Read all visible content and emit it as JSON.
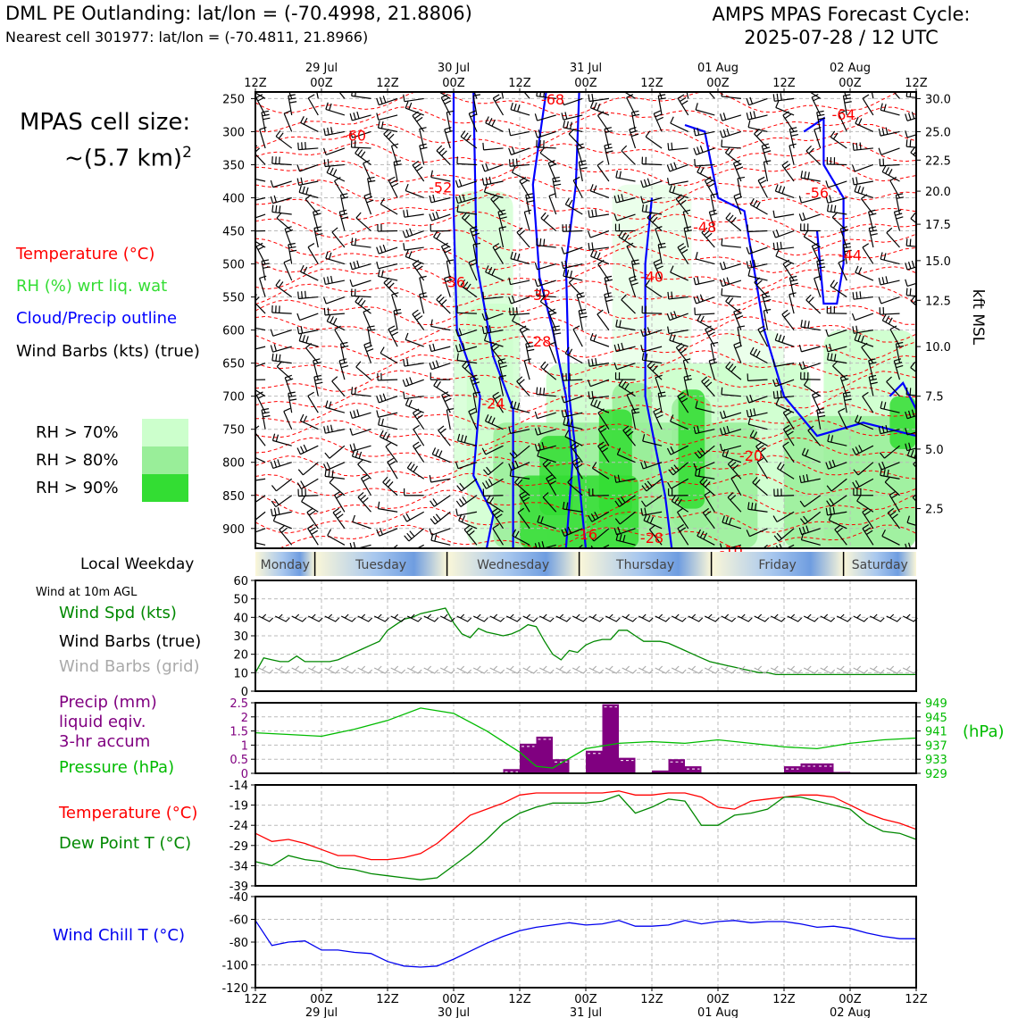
{
  "header": {
    "title_left": "DML PE Outlanding: lat/lon = (-70.4998, 21.8806)",
    "subtitle_left": "Nearest cell 301977: lat/lon = (-70.4811, 21.8966)",
    "title_right_line1": "AMPS MPAS Forecast Cycle:",
    "title_right_line2": "2025-07-28 / 12 UTC"
  },
  "left_panel": {
    "cell_size_line1": "MPAS cell size:",
    "cell_size_line2": "~(5.7 km)",
    "cell_size_exp": "2",
    "legend_temperature": "Temperature (°C)",
    "legend_rh": "RH (%) wrt liq. wat",
    "legend_cloud": "Cloud/Precip outline",
    "legend_wind": "Wind Barbs (kts) (true)",
    "rh_levels": [
      {
        "label": "RH > 70%",
        "color": "#ccffcc"
      },
      {
        "label": "RH > 80%",
        "color": "#99ee99"
      },
      {
        "label": "RH > 90%",
        "color": "#33dd33"
      }
    ]
  },
  "colors": {
    "temperature": "#ff0000",
    "rh_text": "#33dd33",
    "cloud": "#0000ff",
    "wind_speed": "#008800",
    "precip": "#800080",
    "pressure": "#00bb00",
    "dewpoint": "#008800",
    "windchill": "#0000ee",
    "grid_barbs": "#aaaaaa"
  },
  "time_axis": {
    "hours": [
      "12Z",
      "00Z",
      "12Z",
      "00Z",
      "12Z",
      "00Z",
      "12Z",
      "00Z",
      "12Z",
      "00Z",
      "12Z"
    ],
    "dates": [
      "",
      "29 Jul",
      "",
      "30 Jul",
      "",
      "31 Jul",
      "",
      "01 Aug",
      "",
      "02 Aug",
      ""
    ]
  },
  "weekday_strip": {
    "label": "Local Weekday",
    "days": [
      "Monday",
      "Tuesday",
      "Wednesday",
      "Thursday",
      "Friday",
      "Saturday"
    ]
  },
  "chart_data": [
    {
      "type": "heatmap",
      "name": "time-height cross section",
      "yaxis_left_label": "",
      "pressure_ticks": [
        250,
        300,
        350,
        400,
        450,
        500,
        550,
        600,
        650,
        700,
        750,
        800,
        850,
        900
      ],
      "ylim": [
        930,
        240
      ],
      "right_axis_label": "kft MSL",
      "height_ticks": [
        {
          "label": "30.0",
          "p": 250
        },
        {
          "label": "25.0",
          "p": 300
        },
        {
          "label": "22.5",
          "p": 343
        },
        {
          "label": "20.0",
          "p": 390
        },
        {
          "label": "17.5",
          "p": 440
        },
        {
          "label": "15.0",
          "p": 495
        },
        {
          "label": "12.5",
          "p": 555
        },
        {
          "label": "10.0",
          "p": 625
        },
        {
          "label": "7.5",
          "p": 700
        },
        {
          "label": "5.0",
          "p": 780
        },
        {
          "label": "2.5",
          "p": 870
        }
      ],
      "temperature_labels": [
        {
          "t": 4.5,
          "p": 252,
          "text": "-68"
        },
        {
          "t": 1.5,
          "p": 307,
          "text": "-60"
        },
        {
          "t": 2.8,
          "p": 385,
          "text": "-52"
        },
        {
          "t": 3.0,
          "p": 528,
          "text": "-36"
        },
        {
          "t": 3.6,
          "p": 712,
          "text": "-24"
        },
        {
          "t": 6.0,
          "p": 915,
          "text": "-28"
        },
        {
          "t": 4.3,
          "p": 548,
          "text": "-32"
        },
        {
          "t": 4.3,
          "p": 618,
          "text": "-28"
        },
        {
          "t": 6.0,
          "p": 520,
          "text": "-40"
        },
        {
          "t": 6.8,
          "p": 445,
          "text": "-48"
        },
        {
          "t": 5.0,
          "p": 910,
          "text": "-16"
        },
        {
          "t": 7.5,
          "p": 791,
          "text": "-20"
        },
        {
          "t": 8.9,
          "p": 275,
          "text": "-64"
        },
        {
          "t": 8.5,
          "p": 393,
          "text": "-56"
        },
        {
          "t": 9.0,
          "p": 488,
          "text": "-44"
        },
        {
          "t": 9.1,
          "p": 233,
          "text": "-68"
        },
        {
          "t": 7.2,
          "p": 935,
          "text": "-10"
        }
      ]
    },
    {
      "type": "line",
      "name": "Wind at 10m AGL",
      "panel_title": "Wind at 10m AGL",
      "legend": [
        "Wind Spd (kts)",
        "Wind Barbs (true)",
        "Wind Barbs (grid)"
      ],
      "ylim": [
        0,
        60
      ],
      "yticks": [
        0,
        10,
        20,
        30,
        40,
        50,
        60
      ],
      "x": [
        0,
        0.125,
        0.25,
        0.375,
        0.5,
        0.625,
        0.75,
        0.875,
        1,
        1.125,
        1.25,
        1.375,
        1.5,
        1.625,
        1.75,
        1.875,
        2,
        2.125,
        2.25,
        2.375,
        2.5,
        2.625,
        2.75,
        2.875,
        3,
        3.125,
        3.25,
        3.375,
        3.5,
        3.625,
        3.75,
        3.875,
        4,
        4.125,
        4.25,
        4.375,
        4.5,
        4.625,
        4.75,
        4.875,
        5,
        5.125,
        5.25,
        5.375,
        5.5,
        5.625,
        5.75,
        5.875,
        6,
        6.125,
        6.25,
        6.375,
        6.5,
        6.625,
        6.75,
        6.875,
        7,
        7.125,
        7.25,
        7.375,
        7.5,
        7.625,
        7.75,
        7.875,
        8,
        8.125,
        8.25,
        8.375,
        8.5,
        8.625,
        8.75,
        8.875,
        9,
        9.125,
        9.25,
        9.375,
        9.5,
        9.625,
        9.75,
        9.875,
        10
      ],
      "wind_speed": [
        10,
        18,
        17,
        16,
        16,
        19,
        16,
        16,
        16,
        16,
        17,
        19,
        21,
        23,
        25,
        27,
        33,
        36,
        39,
        40,
        42,
        43,
        44,
        45,
        37,
        31,
        29,
        34,
        32,
        31,
        30,
        31,
        33,
        36,
        35,
        27,
        20,
        17,
        22,
        21,
        25,
        27,
        28,
        28,
        33,
        33,
        30,
        27,
        27,
        27,
        26,
        24,
        22,
        20,
        18,
        16,
        15,
        14,
        13,
        12,
        11,
        10,
        10,
        9,
        9,
        9,
        9,
        9,
        9,
        9,
        9,
        9,
        9,
        9,
        9,
        9,
        9,
        9,
        9,
        9,
        9
      ]
    },
    {
      "type": "bar",
      "name": "Precip and Pressure",
      "legend": [
        "Precip (mm)",
        "liquid eqiv.",
        "3-hr accum",
        "Pressure (hPa)"
      ],
      "precip_ylim": [
        0,
        2.5
      ],
      "precip_yticks": [
        0,
        0.5,
        1.0,
        1.5,
        2.0,
        2.5
      ],
      "pressure_ylim": [
        929,
        949
      ],
      "pressure_yticks": [
        929,
        933,
        937,
        941,
        945,
        949
      ],
      "pressure_unit": "(hPa)",
      "precip_bars": [
        {
          "t": 3.75,
          "v": 0.15
        },
        {
          "t": 4.0,
          "v": 1.05
        },
        {
          "t": 4.25,
          "v": 1.3
        },
        {
          "t": 4.5,
          "v": 0.5
        },
        {
          "t": 5.0,
          "v": 0.8
        },
        {
          "t": 5.25,
          "v": 2.45
        },
        {
          "t": 5.5,
          "v": 0.55
        },
        {
          "t": 6.0,
          "v": 0.1
        },
        {
          "t": 6.25,
          "v": 0.5
        },
        {
          "t": 6.5,
          "v": 0.25
        },
        {
          "t": 8.0,
          "v": 0.25
        },
        {
          "t": 8.25,
          "v": 0.35
        },
        {
          "t": 8.5,
          "v": 0.35
        },
        {
          "t": 8.75,
          "v": 0.05
        }
      ],
      "pressure_t": [
        0,
        0.5,
        1,
        1.5,
        2,
        2.5,
        3,
        3.5,
        4,
        4.25,
        4.5,
        5,
        5.5,
        6,
        6.5,
        7,
        7.5,
        8,
        8.5,
        9,
        9.5,
        10
      ],
      "pressure": [
        940.5,
        940,
        939.5,
        941.5,
        944,
        947.5,
        946,
        941,
        935,
        931,
        930.5,
        936,
        937.5,
        938,
        937.5,
        938.5,
        937.5,
        936.5,
        936,
        937.5,
        938.5,
        939
      ]
    },
    {
      "type": "line",
      "name": "Temperature and Dew Point",
      "legend": [
        "Temperature (°C)",
        "Dew Point T (°C)"
      ],
      "ylim": [
        -39,
        -14
      ],
      "yticks": [
        -39,
        -34,
        -29,
        -24,
        -19,
        -14
      ],
      "t": [
        0,
        0.25,
        0.5,
        0.75,
        1,
        1.25,
        1.5,
        1.75,
        2,
        2.25,
        2.5,
        2.75,
        3,
        3.25,
        3.5,
        3.75,
        4,
        4.25,
        4.5,
        4.75,
        5,
        5.25,
        5.5,
        5.75,
        6,
        6.25,
        6.5,
        6.75,
        7,
        7.25,
        7.5,
        7.75,
        8,
        8.25,
        8.5,
        8.75,
        9,
        9.25,
        9.5,
        9.75,
        10
      ],
      "temperature": [
        -26,
        -28,
        -27.5,
        -28.5,
        -30,
        -31.5,
        -31.5,
        -32.5,
        -32.5,
        -32,
        -31,
        -28.5,
        -25,
        -21.5,
        -20,
        -18.5,
        -16.5,
        -16,
        -16,
        -16,
        -16,
        -16,
        -15.5,
        -16.5,
        -16.5,
        -16,
        -16,
        -17,
        -19.5,
        -20,
        -18,
        -17.5,
        -17,
        -16.5,
        -16.5,
        -17,
        -19,
        -21,
        -22.5,
        -23.5,
        -25
      ],
      "dewpoint": [
        -33,
        -34,
        -31.5,
        -32.5,
        -33,
        -34.5,
        -35,
        -36,
        -36.5,
        -37,
        -37.5,
        -37,
        -34,
        -31,
        -27.5,
        -23.5,
        -21,
        -19.5,
        -18.5,
        -18.5,
        -18.5,
        -18,
        -16.5,
        -21,
        -19.5,
        -17.5,
        -18,
        -24,
        -24,
        -21.5,
        -21,
        -20,
        -17,
        -17,
        -18,
        -19,
        -20,
        -23.5,
        -25.5,
        -26,
        -27.5
      ]
    },
    {
      "type": "line",
      "name": "Wind Chill",
      "legend": [
        "Wind Chill T (°C)"
      ],
      "ylim": [
        -120,
        -40
      ],
      "yticks": [
        -120,
        -100,
        -80,
        -60,
        -40
      ],
      "t": [
        0,
        0.25,
        0.5,
        0.75,
        1,
        1.25,
        1.5,
        1.75,
        2,
        2.25,
        2.5,
        2.75,
        3,
        3.25,
        3.5,
        3.75,
        4,
        4.25,
        4.5,
        4.75,
        5,
        5.25,
        5.5,
        5.75,
        6,
        6.25,
        6.5,
        6.75,
        7,
        7.25,
        7.5,
        7.75,
        8,
        8.25,
        8.5,
        8.75,
        9,
        9.25,
        9.5,
        9.75,
        10
      ],
      "windchill": [
        -61,
        -83,
        -80,
        -79,
        -87,
        -87,
        -89,
        -90,
        -97,
        -101,
        -102,
        -101,
        -95,
        -88,
        -81,
        -75,
        -70,
        -67,
        -65,
        -63,
        -65,
        -64,
        -61,
        -66,
        -66,
        -65,
        -61,
        -64,
        -62,
        -61,
        -63,
        -62,
        -62,
        -64,
        -67,
        -66,
        -68,
        -72,
        -75,
        -77,
        -77
      ]
    }
  ]
}
